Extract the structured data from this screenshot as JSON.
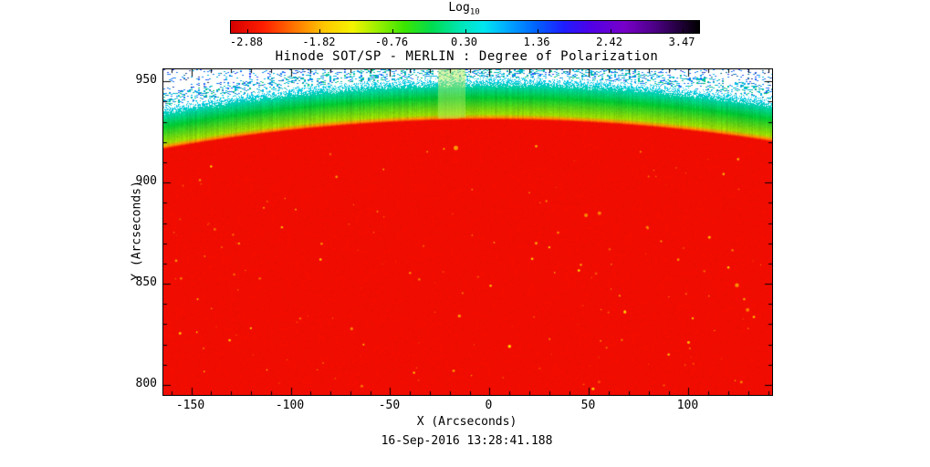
{
  "chart_data": {
    "type": "heatmap",
    "title": "Hinode SOT/SP - MERLIN : Degree of Polarization",
    "subtitle_timestamp": "16-Sep-2016 13:28:41.188",
    "xlabel": "X (Arcseconds)",
    "ylabel": "Y (Arcseconds)",
    "xlim": [
      -164,
      142
    ],
    "ylim": [
      795,
      956
    ],
    "x_ticks": [
      -150,
      -100,
      -50,
      0,
      50,
      100
    ],
    "y_ticks": [
      800,
      850,
      900,
      950
    ],
    "x_minor_step": 10,
    "y_minor_step": 10,
    "colorbar": {
      "label": "Log",
      "label_subscript": "10",
      "tick_labels": [
        "-2.88",
        "-1.82",
        "-0.76",
        "0.30",
        "1.36",
        "2.42",
        "3.47"
      ],
      "tick_values": [
        -2.88,
        -1.82,
        -0.76,
        0.3,
        1.36,
        2.42,
        3.47
      ],
      "gradient_stops": [
        {
          "pos": 0.0,
          "color": "#d40000"
        },
        {
          "pos": 0.07,
          "color": "#ff1e00"
        },
        {
          "pos": 0.14,
          "color": "#ff7a00"
        },
        {
          "pos": 0.2,
          "color": "#ffc800"
        },
        {
          "pos": 0.26,
          "color": "#f4f400"
        },
        {
          "pos": 0.31,
          "color": "#a0f000"
        },
        {
          "pos": 0.37,
          "color": "#3ce600"
        },
        {
          "pos": 0.43,
          "color": "#00dc50"
        },
        {
          "pos": 0.49,
          "color": "#00e6b4"
        },
        {
          "pos": 0.54,
          "color": "#00e6f0"
        },
        {
          "pos": 0.59,
          "color": "#00aaff"
        },
        {
          "pos": 0.65,
          "color": "#0064ff"
        },
        {
          "pos": 0.71,
          "color": "#1e1eff"
        },
        {
          "pos": 0.77,
          "color": "#5000e6"
        },
        {
          "pos": 0.84,
          "color": "#7800c8"
        },
        {
          "pos": 0.9,
          "color": "#50008c"
        },
        {
          "pos": 0.95,
          "color": "#280046"
        },
        {
          "pos": 1.0,
          "color": "#000000"
        }
      ]
    },
    "solar_limb": {
      "radius_arcsec": 931,
      "artifact_column_x_range": [
        -26,
        -12
      ],
      "description": "Solar disk fills lower region in red (low log10 degree of polarization ~ -2.5); limb brightening band of yellow-green to green from ~931 to ~947 arcsec curving as a circular arc; speckled cyan/green/blue pixels over white sky above ~950 arcsec; faint light-green vertical calibration column near x = -26..-12; scattered yellow-orange magnetic bright points across the red disk"
    },
    "bright_points": [
      [
        10,
        819,
        1.8
      ],
      [
        68,
        836,
        1.6
      ],
      [
        -85,
        862,
        1.3
      ],
      [
        -140,
        908,
        1.2
      ],
      [
        52,
        798,
        1.5
      ],
      [
        -38,
        806,
        1.2
      ],
      [
        120,
        858,
        1.2
      ],
      [
        -120,
        828,
        1.1
      ],
      [
        30,
        868,
        1.1
      ],
      [
        90,
        815,
        1.2
      ]
    ],
    "palette": {
      "disk": "#f20c00",
      "limb_orange": "#ff9100",
      "band_low": "#a0dc00",
      "band_mid": "#00c832",
      "band_high": "#00d2a0",
      "cyan": "#00c8e6",
      "sky_cyan": "#00b4e6",
      "sky_green": "#00c864",
      "sky_blue": "#2846ff",
      "sky_dark": "#303850",
      "background": "#ffffff",
      "artifact": "#b4ec64",
      "speckle_yellow": "#ffd200",
      "speckle_orange": "#ff8c00"
    },
    "noise": {
      "disk_speckle_count": 170,
      "sky_speckle_density_near": 0.32,
      "sky_speckle_density_mid": 0.13,
      "sky_speckle_density_far": 0.07
    }
  }
}
